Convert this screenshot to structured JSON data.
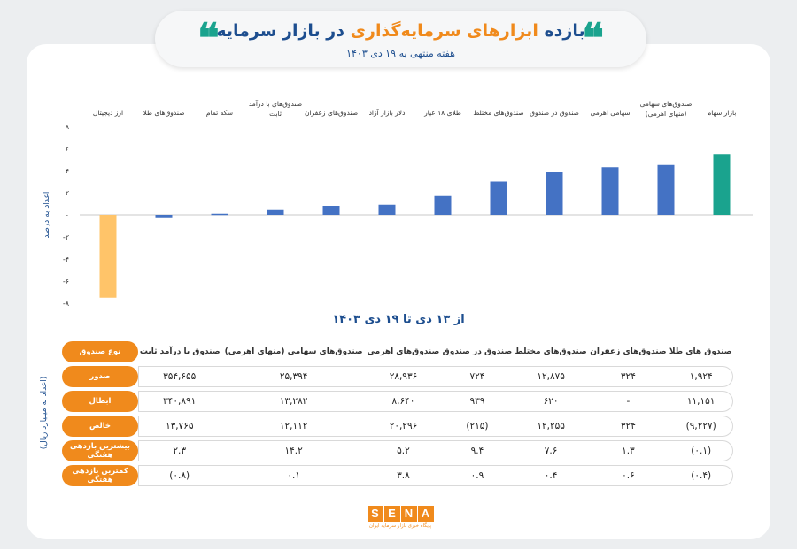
{
  "header": {
    "title_part1": "بازده",
    "title_highlight": "ابزارهای سرمایه‌گذاری",
    "title_part2": "در بازار سرمایه",
    "subtitle": "هفته منتهی به ۱۹ دی ۱۴۰۳",
    "quote_glyph": "❝"
  },
  "colors": {
    "bar_default": "#4472c4",
    "bar_top": "#1aa38e",
    "bar_negative": "#ffc469",
    "accent_orange": "#f08a1c",
    "title_blue": "#1d4e8f"
  },
  "chart_data": {
    "type": "bar",
    "categories": [
      "بازار سهام",
      "صندوق‌های سهامی (منهای اهرمی)",
      "سهامی اهرمی",
      "صندوق در صندوق",
      "صندوق‌های مختلط",
      "طلای ۱۸ عیار",
      "دلار بازار آزاد",
      "صندوق‌های زعفران",
      "صندوق‌های با درآمد ثابت",
      "سکه تمام",
      "صندوق‌های طلا",
      "ارز دیجیتال"
    ],
    "values": [
      5.5,
      4.5,
      4.3,
      3.9,
      3.0,
      1.7,
      0.9,
      0.8,
      0.5,
      0.1,
      -0.3,
      -7.5
    ],
    "ylim": [
      -8,
      8
    ],
    "yticks": [
      "۸",
      "۶",
      "۴",
      "۲",
      "۰",
      "-۲",
      "-۴",
      "-۶",
      "-۸"
    ],
    "ytick_values": [
      8,
      6,
      4,
      2,
      0,
      -2,
      -4,
      -6,
      -8
    ],
    "ylabel": "اعداد به درصد",
    "xlabel": "از ۱۳ دی تا ۱۹ دی ۱۴۰۳",
    "grid": false
  },
  "table": {
    "side_label": "(اعداد به میلیارد ریال)",
    "header_label": "نوع صندوق",
    "columns": [
      "صندوق های طلا",
      "صندوق‌های زعفران",
      "صندوق‌های مختلط",
      "صندوق در صندوق",
      "صندوق‌های اهرمی",
      "صندوق‌های سهامی (منهای اهرمی)",
      "صندوق با درآمد ثابت"
    ],
    "rows": [
      {
        "label": "صدور",
        "values": [
          "۱,۹۲۴",
          "۳۲۴",
          "۱۲,۸۷۵",
          "۷۲۴",
          "۲۸,۹۳۶",
          "۲۵,۳۹۴",
          "۳۵۴,۶۵۵"
        ]
      },
      {
        "label": "ابطال",
        "values": [
          "۱۱,۱۵۱",
          "-",
          "۶۲۰",
          "۹۳۹",
          "۸,۶۴۰",
          "۱۳,۲۸۲",
          "۳۴۰,۸۹۱"
        ]
      },
      {
        "label": "خالص",
        "values": [
          "(۹,۲۲۷)",
          "۳۲۴",
          "۱۲,۲۵۵",
          "(۲۱۵)",
          "۲۰,۲۹۶",
          "۱۲,۱۱۲",
          "۱۳,۷۶۵"
        ]
      },
      {
        "label": "بیشترین بازدهی هفتگی",
        "values": [
          "(۰.۱)",
          "۱.۳",
          "۷.۶",
          "۹.۴",
          "۵.۲",
          "۱۴.۲",
          "۲.۳"
        ]
      },
      {
        "label": "کمترین بازدهی هفتگی",
        "values": [
          "(۰.۴)",
          "۰.۶",
          "۰.۴",
          "۰.۹",
          "۳.۸",
          "۰.۱",
          "(۰.۸)"
        ]
      }
    ]
  },
  "logo": {
    "letters": [
      "S",
      "E",
      "N",
      "A"
    ],
    "subtitle": "پایگاه خبری بازار سرمایه ایران"
  }
}
